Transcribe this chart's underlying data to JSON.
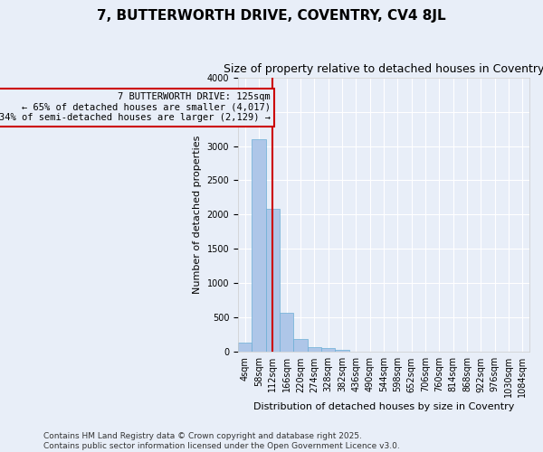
{
  "title": "7, BUTTERWORTH DRIVE, COVENTRY, CV4 8JL",
  "subtitle": "Size of property relative to detached houses in Coventry",
  "xlabel": "Distribution of detached houses by size in Coventry",
  "ylabel": "Number of detached properties",
  "bin_labels": [
    "4sqm",
    "58sqm",
    "112sqm",
    "166sqm",
    "220sqm",
    "274sqm",
    "328sqm",
    "382sqm",
    "436sqm",
    "490sqm",
    "544sqm",
    "598sqm",
    "652sqm",
    "706sqm",
    "760sqm",
    "814sqm",
    "868sqm",
    "922sqm",
    "976sqm",
    "1030sqm",
    "1084sqm"
  ],
  "bar_values": [
    135,
    3100,
    2090,
    570,
    195,
    75,
    55,
    35,
    0,
    0,
    0,
    0,
    0,
    0,
    0,
    0,
    0,
    0,
    0,
    0,
    0
  ],
  "bar_color": "#aec6e8",
  "bar_edge_color": "#6baed6",
  "background_color": "#e8eef8",
  "grid_color": "#ffffff",
  "red_line_x": 2.0,
  "annotation_text": "7 BUTTERWORTH DRIVE: 125sqm\n← 65% of detached houses are smaller (4,017)\n34% of semi-detached houses are larger (2,129) →",
  "annotation_box_color": "#cc0000",
  "ylim": [
    0,
    4000
  ],
  "yticks": [
    0,
    500,
    1000,
    1500,
    2000,
    2500,
    3000,
    3500,
    4000
  ],
  "footer_line1": "Contains HM Land Registry data © Crown copyright and database right 2025.",
  "footer_line2": "Contains public sector information licensed under the Open Government Licence v3.0.",
  "title_fontsize": 11,
  "subtitle_fontsize": 9,
  "axis_label_fontsize": 8,
  "tick_fontsize": 7,
  "annotation_fontsize": 7.5,
  "footer_fontsize": 6.5
}
